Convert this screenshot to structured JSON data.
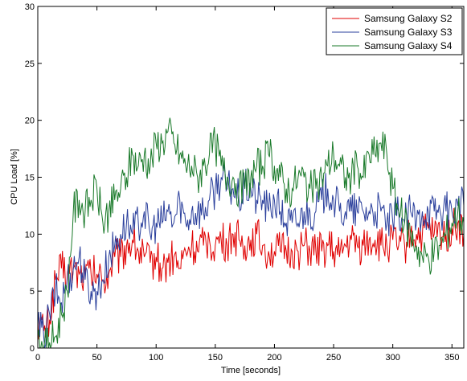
{
  "chart_data": {
    "type": "line",
    "xlabel": "Time [seconds]",
    "ylabel": "CPU Load [%]",
    "xlim": [
      0,
      360
    ],
    "ylim": [
      0,
      30
    ],
    "xticks": [
      0,
      50,
      100,
      150,
      200,
      250,
      300,
      350
    ],
    "yticks": [
      0,
      5,
      10,
      15,
      20,
      25,
      30
    ],
    "grid": false,
    "legend_position": "top-right",
    "series": [
      {
        "name": "Samsung Galaxy S2",
        "color": "#e00000",
        "x": [
          0,
          5,
          10,
          15,
          20,
          25,
          30,
          35,
          40,
          45,
          50,
          55,
          60,
          65,
          70,
          75,
          80,
          85,
          90,
          95,
          100,
          105,
          110,
          115,
          120,
          125,
          130,
          135,
          140,
          145,
          150,
          155,
          160,
          165,
          170,
          175,
          180,
          185,
          190,
          195,
          200,
          205,
          210,
          215,
          220,
          225,
          230,
          235,
          240,
          245,
          250,
          255,
          260,
          265,
          270,
          275,
          280,
          285,
          290,
          295,
          300,
          305,
          310,
          315,
          320,
          325,
          330,
          335,
          340,
          345,
          350,
          355,
          360
        ],
        "y": [
          2.5,
          1.5,
          2.5,
          6,
          7,
          6.5,
          7,
          6.5,
          6.5,
          6.5,
          6.5,
          6,
          6.5,
          8,
          8,
          9,
          9.5,
          8.5,
          8,
          7.5,
          8,
          7,
          7.5,
          8,
          7,
          8.5,
          9,
          8.5,
          9,
          9.5,
          9,
          9.5,
          9,
          10,
          9.5,
          9,
          9.5,
          10,
          9,
          8.5,
          8.5,
          8.5,
          8.5,
          8.5,
          8.5,
          9,
          8.5,
          8.5,
          8.5,
          9,
          8.5,
          8,
          9,
          9.5,
          9,
          9,
          9.5,
          9.5,
          9,
          9,
          9.5,
          9,
          9,
          10,
          10,
          10,
          10.5,
          10,
          10,
          10,
          10.5,
          11,
          10
        ]
      },
      {
        "name": "Samsung Galaxy S3",
        "color": "#2a3f9c",
        "x": [
          0,
          5,
          10,
          15,
          20,
          25,
          30,
          35,
          40,
          45,
          50,
          55,
          60,
          65,
          70,
          75,
          80,
          85,
          90,
          95,
          100,
          105,
          110,
          115,
          120,
          125,
          130,
          135,
          140,
          145,
          150,
          155,
          160,
          165,
          170,
          175,
          180,
          185,
          190,
          195,
          200,
          205,
          210,
          215,
          220,
          225,
          230,
          235,
          240,
          245,
          250,
          255,
          260,
          265,
          270,
          275,
          280,
          285,
          290,
          295,
          300,
          305,
          310,
          315,
          320,
          325,
          330,
          335,
          340,
          345,
          350,
          355,
          360
        ],
        "y": [
          2,
          1,
          3,
          5,
          4,
          6,
          7,
          8,
          6,
          5,
          5,
          6,
          8,
          9,
          10,
          11,
          10,
          11,
          12,
          10,
          11,
          11,
          12,
          11,
          13,
          11,
          12,
          12,
          12,
          13,
          14,
          15,
          14,
          14,
          13,
          14,
          14,
          13,
          13,
          12,
          13,
          12,
          11,
          11,
          11,
          12,
          12,
          12,
          13,
          14,
          13,
          12,
          12,
          12,
          12,
          12,
          12,
          12,
          12,
          11,
          11,
          12,
          11,
          12,
          11,
          12,
          12,
          12,
          12,
          12,
          12,
          12.5,
          12.5
        ]
      },
      {
        "name": "Samsung Galaxy S4",
        "color": "#1a7a2a",
        "x": [
          0,
          5,
          10,
          15,
          20,
          25,
          30,
          35,
          40,
          45,
          50,
          55,
          60,
          65,
          70,
          75,
          80,
          85,
          90,
          95,
          100,
          105,
          110,
          115,
          120,
          125,
          130,
          135,
          140,
          145,
          150,
          155,
          160,
          165,
          170,
          175,
          180,
          185,
          190,
          195,
          200,
          205,
          210,
          215,
          220,
          225,
          230,
          235,
          240,
          245,
          250,
          255,
          260,
          265,
          270,
          275,
          280,
          285,
          290,
          295,
          300,
          305,
          310,
          315,
          320,
          325,
          330,
          335,
          340,
          345,
          350,
          355,
          360
        ],
        "y": [
          1,
          0,
          0.5,
          1,
          3,
          5,
          12,
          13,
          12,
          13,
          14,
          11,
          12,
          13,
          14,
          15,
          17,
          16,
          17,
          16,
          18,
          18,
          19,
          18,
          17,
          16,
          16,
          15,
          16,
          17,
          18,
          16,
          15,
          15,
          14,
          14,
          15,
          16,
          16,
          17,
          16,
          15,
          14,
          14,
          15,
          15,
          14,
          14,
          15,
          16,
          17,
          16,
          15,
          15,
          16,
          15,
          17,
          17,
          18,
          17,
          14,
          12,
          11,
          10,
          9,
          8,
          8,
          8.5,
          9,
          10,
          11,
          12,
          11
        ]
      }
    ]
  }
}
